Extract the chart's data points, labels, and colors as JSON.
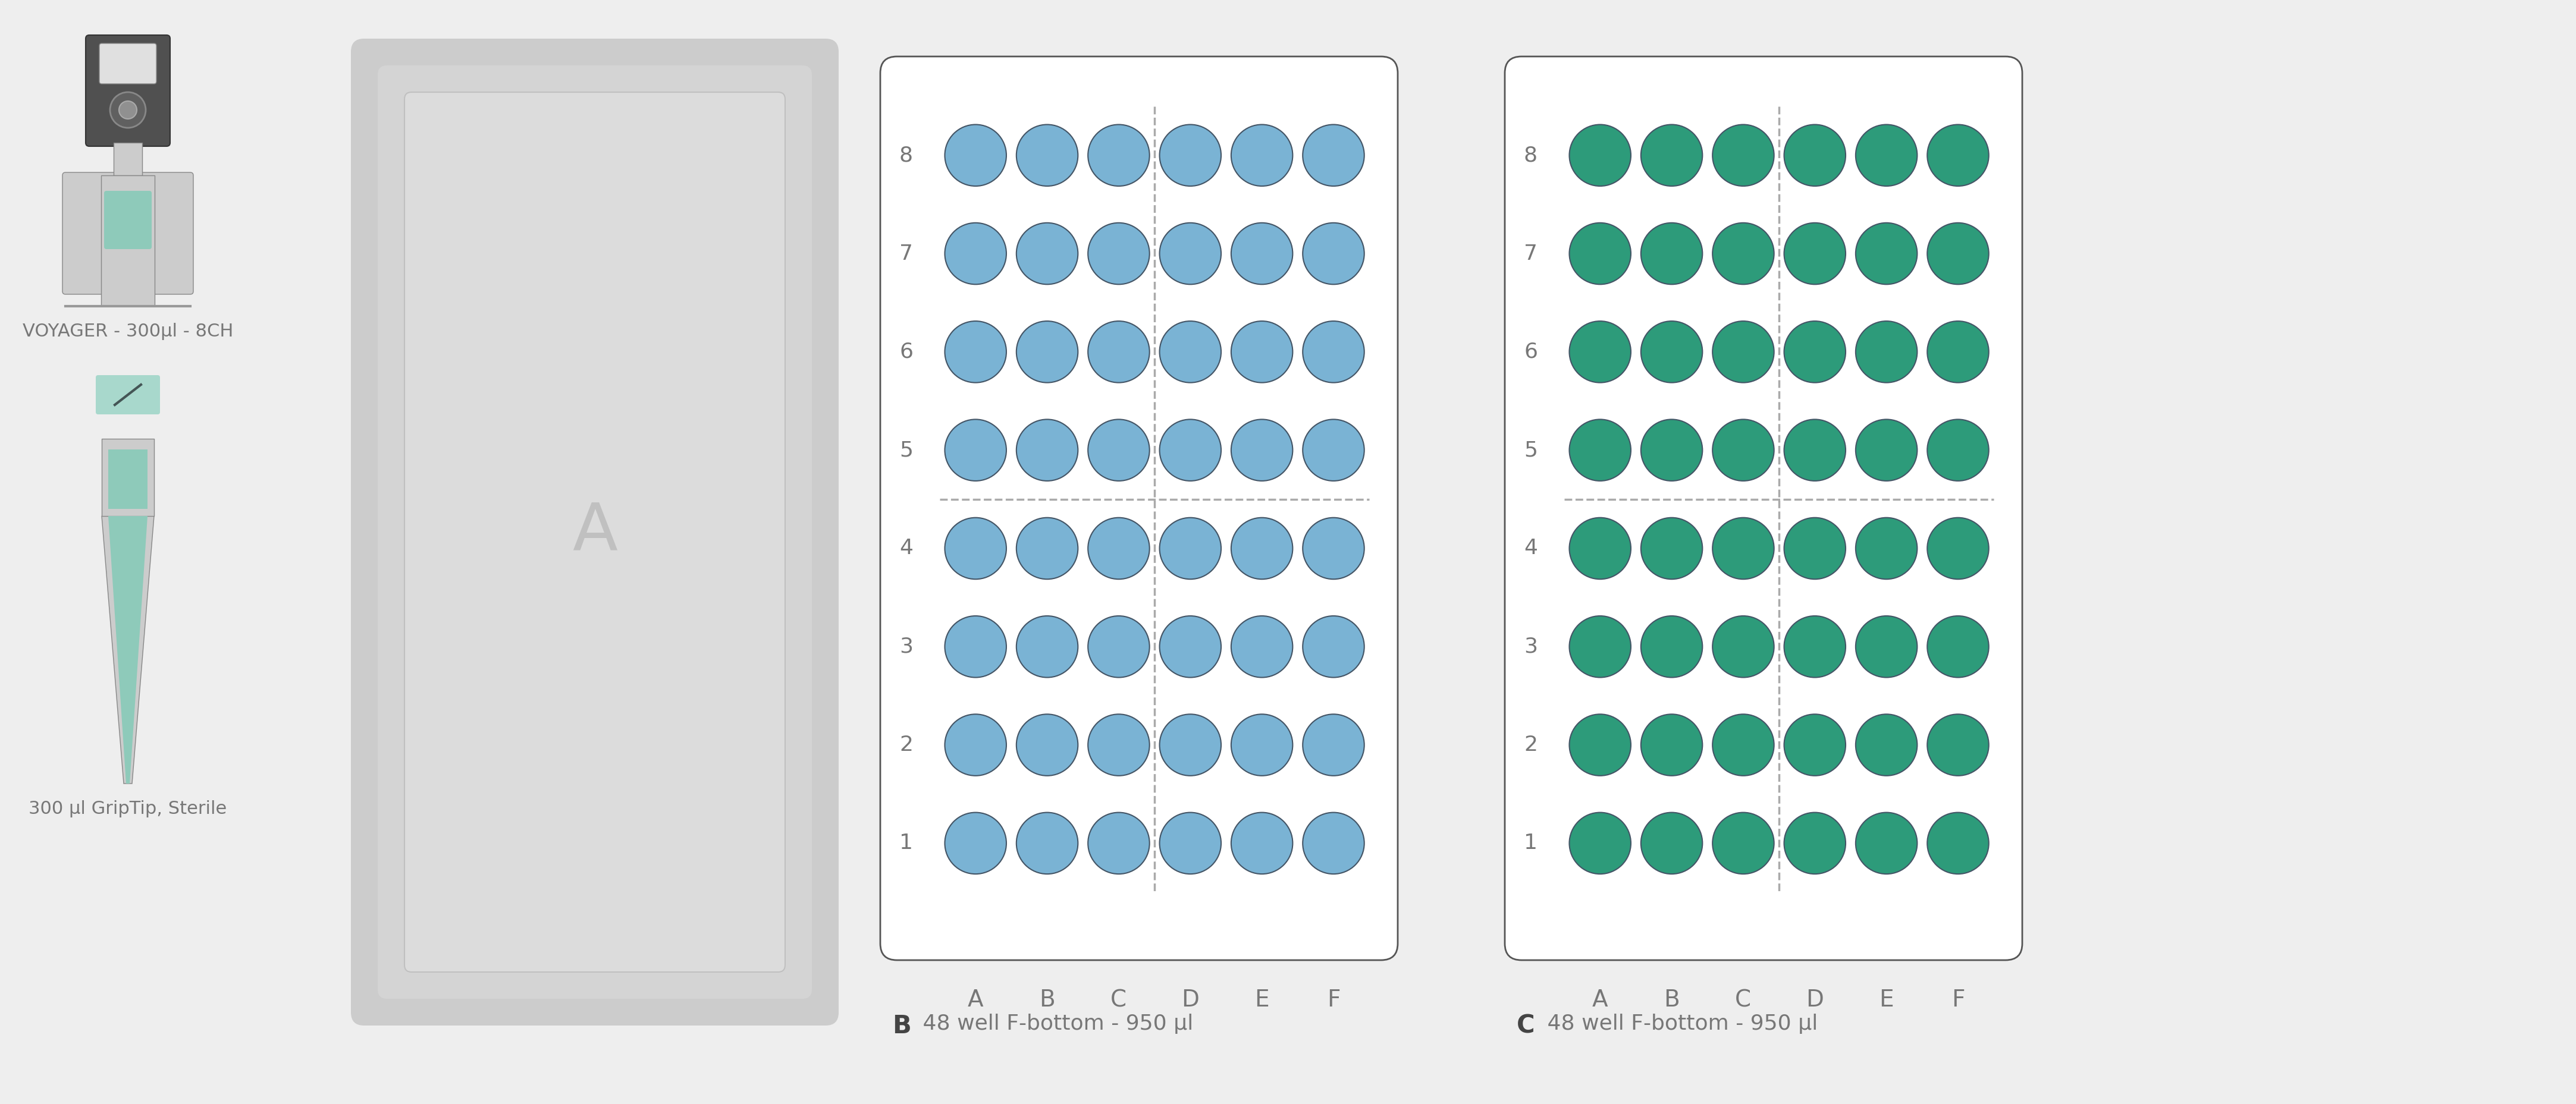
{
  "bg_color": "#eeeeee",
  "plate_bg": "#ffffff",
  "plate_border": "#555555",
  "well_color_blue": "#7ab3d4",
  "well_color_green": "#2d9b7a",
  "well_stroke": "#445566",
  "dashed_line_color": "#aaaaaa",
  "label_color": "#777777",
  "bold_label_color": "#444444",
  "deck_outer": "#cccccc",
  "deck_mid": "#d4d4d4",
  "deck_inner": "#dcdcdc",
  "teal_accent": "#8ecaba",
  "teal_light": "#a8d8cc",
  "pipette_dark": "#505050",
  "pipette_mid": "#888888",
  "pipette_light": "#cccccc",
  "pipette_lighter": "#e0e0e0",
  "fig_w": 4331,
  "fig_h": 1857,
  "col_labels": [
    "A",
    "B",
    "C",
    "D",
    "E",
    "F"
  ],
  "row_labels": [
    "8",
    "7",
    "6",
    "5",
    "4",
    "3",
    "2",
    "1"
  ],
  "pipette_label": "VOYAGER - 300µl - 8CH",
  "tip_label": "300 µl GripTip, Sterile",
  "label_B_bold": "B",
  "label_B_text": " 48 well F-bottom - 950 µl",
  "label_C_bold": "C",
  "label_C_text": " 48 well F-bottom - 950 µl",
  "label_A": "A"
}
